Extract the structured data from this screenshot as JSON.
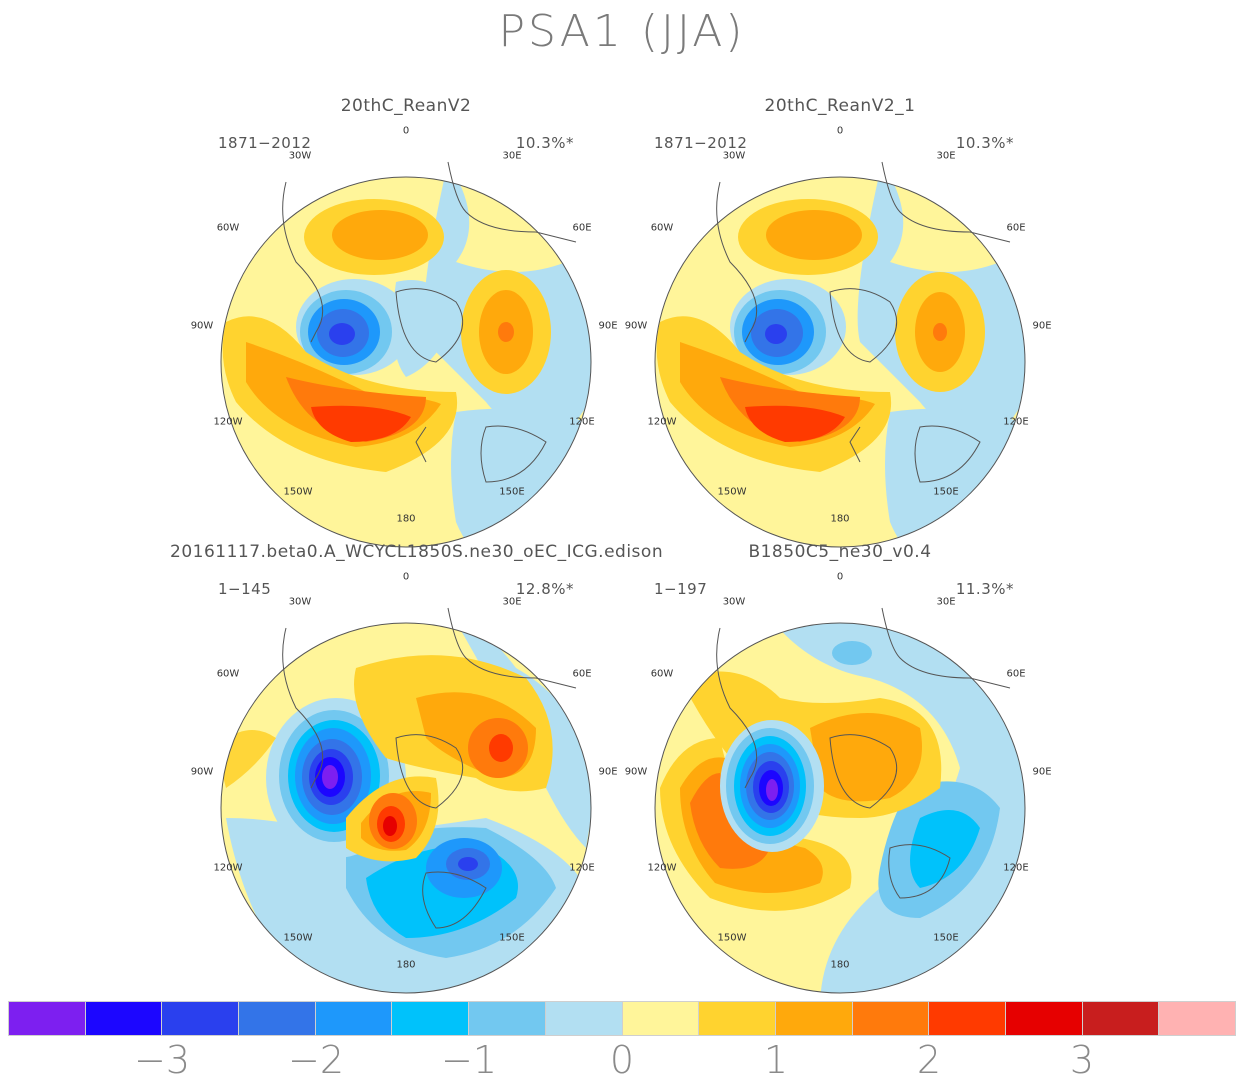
{
  "figure": {
    "title": "PSA1 (JJA)"
  },
  "panels": [
    {
      "title": "20thC_ReanV2",
      "years": "1871-2012",
      "percent": "10.3%*",
      "lon_labels": [
        "0",
        "30E",
        "60E",
        "90E",
        "120E",
        "150E",
        "180",
        "150W",
        "120W",
        "90W",
        "60W",
        "30W"
      ]
    },
    {
      "title": "20thC_ReanV2_1",
      "years": "1871-2012",
      "percent": "10.3%*",
      "lon_labels": [
        "0",
        "30E",
        "60E",
        "90E",
        "120E",
        "150E",
        "180",
        "150W",
        "120W",
        "90W",
        "60W",
        "30W"
      ]
    },
    {
      "title": "20161117.beta0.A_WCYCL1850S.ne30_oEC_ICG.edison",
      "years": "1-145",
      "percent": "12.8%*",
      "lon_labels": [
        "0",
        "30E",
        "60E",
        "90E",
        "120E",
        "150E",
        "180",
        "150W",
        "120W",
        "90W",
        "60W",
        "30W"
      ]
    },
    {
      "title": "B1850C5_ne30_v0.4",
      "years": "1-197",
      "percent": "11.3%*",
      "lon_labels": [
        "0",
        "30E",
        "60E",
        "90E",
        "120E",
        "150E",
        "180",
        "150W",
        "120W",
        "90W",
        "60W",
        "30W"
      ]
    }
  ],
  "colorbar": {
    "colors": [
      "#7d1ff0",
      "#1c06ff",
      "#2a40ee",
      "#3374e8",
      "#1e98fb",
      "#00c2fb",
      "#72c8f0",
      "#b2dff2",
      "#fff59a",
      "#ffd32f",
      "#ffa90c",
      "#ff7a0c",
      "#ff3a00",
      "#e60000",
      "#c81e1e",
      "#ffb2b2"
    ],
    "labels": [
      "-3",
      "-2",
      "-1",
      "0",
      "1",
      "2",
      "3"
    ]
  }
}
